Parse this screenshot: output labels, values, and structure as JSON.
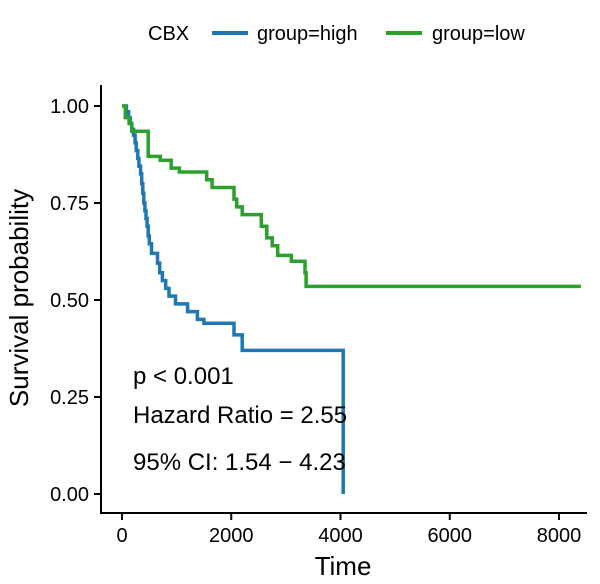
{
  "chart_data": {
    "type": "line",
    "subtype": "kaplan-meier step curve",
    "title": "",
    "xlabel": "Time",
    "ylabel": "Survival probability",
    "xlim": [
      -400,
      8400
    ],
    "ylim": [
      0,
      1.0
    ],
    "x_ticks": [
      0,
      2000,
      4000,
      6000,
      8000
    ],
    "y_ticks": [
      0.0,
      0.25,
      0.5,
      0.75,
      1.0
    ],
    "x_tick_labels": [
      "0",
      "2000",
      "4000",
      "6000",
      "8000"
    ],
    "y_tick_labels": [
      "0.00",
      "0.25",
      "0.50",
      "0.75",
      "1.00"
    ],
    "grid": false,
    "legend": {
      "title": "CBX",
      "placement": "top",
      "entries": [
        "group=high",
        "group=low"
      ]
    },
    "annotations": [
      "p < 0.001",
      "Hazard Ratio = 2.55",
      "95% CI: 1.54 − 4.23"
    ],
    "series": [
      {
        "name": "group=high",
        "color": "#1f77b4",
        "points": [
          [
            0,
            1.0
          ],
          [
            80,
            0.985
          ],
          [
            120,
            0.97
          ],
          [
            150,
            0.955
          ],
          [
            180,
            0.94
          ],
          [
            210,
            0.925
          ],
          [
            240,
            0.905
          ],
          [
            260,
            0.885
          ],
          [
            290,
            0.865
          ],
          [
            310,
            0.845
          ],
          [
            340,
            0.825
          ],
          [
            360,
            0.8
          ],
          [
            380,
            0.775
          ],
          [
            400,
            0.75
          ],
          [
            420,
            0.73
          ],
          [
            440,
            0.71
          ],
          [
            460,
            0.69
          ],
          [
            480,
            0.665
          ],
          [
            500,
            0.645
          ],
          [
            540,
            0.62
          ],
          [
            650,
            0.595
          ],
          [
            690,
            0.57
          ],
          [
            740,
            0.55
          ],
          [
            800,
            0.53
          ],
          [
            860,
            0.51
          ],
          [
            980,
            0.49
          ],
          [
            1200,
            0.47
          ],
          [
            1380,
            0.45
          ],
          [
            1500,
            0.44
          ],
          [
            2050,
            0.41
          ],
          [
            2200,
            0.37
          ],
          [
            4050,
            0.37
          ],
          [
            4050,
            0.0
          ]
        ]
      },
      {
        "name": "group=low",
        "color": "#2ca02c",
        "points": [
          [
            0,
            1.0
          ],
          [
            60,
            0.97
          ],
          [
            130,
            0.955
          ],
          [
            180,
            0.935
          ],
          [
            480,
            0.87
          ],
          [
            700,
            0.86
          ],
          [
            900,
            0.84
          ],
          [
            1050,
            0.83
          ],
          [
            1550,
            0.81
          ],
          [
            1650,
            0.79
          ],
          [
            2050,
            0.76
          ],
          [
            2100,
            0.74
          ],
          [
            2200,
            0.72
          ],
          [
            2550,
            0.69
          ],
          [
            2650,
            0.66
          ],
          [
            2750,
            0.64
          ],
          [
            2850,
            0.615
          ],
          [
            3100,
            0.6
          ],
          [
            3350,
            0.57
          ],
          [
            3370,
            0.535
          ],
          [
            8400,
            0.535
          ]
        ]
      }
    ]
  }
}
